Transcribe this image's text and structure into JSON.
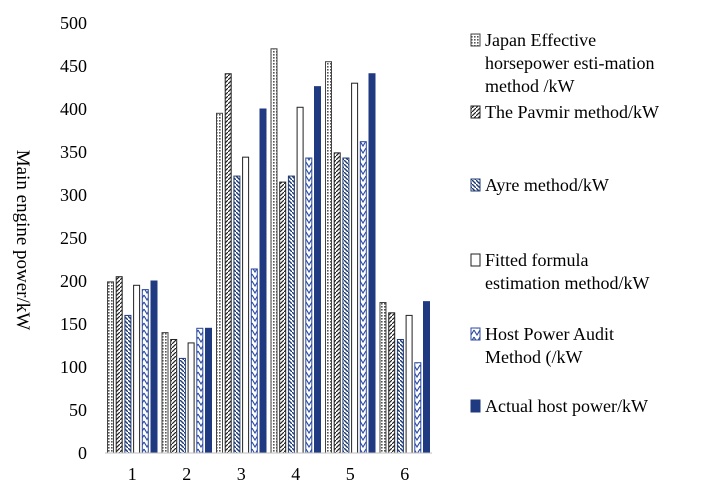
{
  "chart_data": {
    "type": "bar",
    "title": "",
    "xlabel": "",
    "ylabel": "Main engine power/kW",
    "ylim": [
      0,
      500
    ],
    "yticks": [
      0,
      50,
      100,
      150,
      200,
      250,
      300,
      350,
      400,
      450,
      500
    ],
    "categories": [
      "1",
      "2",
      "3",
      "4",
      "5",
      "6"
    ],
    "grid": false,
    "legend_position": "right",
    "series": [
      {
        "name_lines": [
          "Japan Effective",
          "horsepower esti-mation",
          "method /kW"
        ],
        "values": [
          199,
          140,
          395,
          470,
          455,
          175
        ],
        "pattern": "dots",
        "color": "#444444"
      },
      {
        "name_lines": [
          "The Pavmir method/kW"
        ],
        "values": [
          205,
          132,
          441,
          315,
          349,
          163
        ],
        "pattern": "diag-up",
        "color": "#222222"
      },
      {
        "name_lines": [
          "Ayre method/kW"
        ],
        "values": [
          160,
          110,
          322,
          322,
          343,
          132
        ],
        "pattern": "diag-down-blue",
        "color": "#1f3b73"
      },
      {
        "name_lines": [
          "Fitted formula",
          "estimation method/kW"
        ],
        "values": [
          195,
          128,
          344,
          402,
          430,
          160
        ],
        "pattern": "hollow",
        "color": "#222222"
      },
      {
        "name_lines": [
          "Host Power Audit",
          "Method (/kW"
        ],
        "values": [
          190,
          145,
          214,
          343,
          362,
          105
        ],
        "pattern": "zigzag-blue",
        "color": "#2b4aa0"
      },
      {
        "name_lines": [
          "Actual host power/kW"
        ],
        "values": [
          200,
          145,
          400,
          426,
          441,
          176
        ],
        "pattern": "solid",
        "color": "#1f3a80"
      }
    ]
  }
}
